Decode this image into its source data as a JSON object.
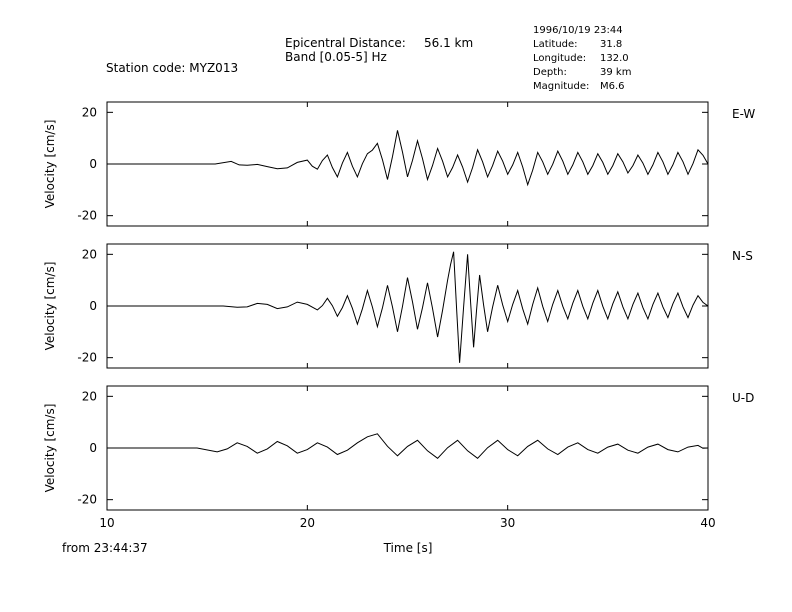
{
  "header": {
    "station_label": "Station code: MYZ013",
    "epicentral_label": "Epicentral Distance:",
    "epicentral_value": "56.1 km",
    "band_label": "Band [0.05-5] Hz",
    "event_datetime": "1996/10/19 23:44",
    "latitude_label": "Latitude:",
    "latitude_value": "31.8",
    "longitude_label": "Longitude:",
    "longitude_value": "132.0",
    "depth_label": "Depth:",
    "depth_value": "39 km",
    "magnitude_label": "Magnitude:",
    "magnitude_value": "M6.6"
  },
  "footer": {
    "start_time": "from 23:44:37",
    "xlabel": "Time [s]"
  },
  "chart_data": {
    "type": "line",
    "xlim": [
      10,
      40
    ],
    "x_ticks": [
      10,
      20,
      30,
      40
    ],
    "x_tick_labels": [
      "10",
      "20",
      "30",
      "40"
    ],
    "ylim": [
      -24,
      24
    ],
    "y_ticks": [
      20,
      0,
      -20
    ],
    "y_tick_labels": [
      "20",
      "0",
      "-20"
    ],
    "ylabel": "Velocity [cm/s]",
    "xlabel": "Time [s]",
    "series": [
      {
        "name": "E-W",
        "x": [
          10,
          15.4,
          16.2,
          17,
          18,
          19,
          20,
          20.5,
          21,
          21.5,
          22,
          22.5,
          23,
          23.5,
          24,
          24.5,
          25,
          25.5,
          26,
          26.5,
          27,
          27.5,
          28,
          28.5,
          29,
          29.5,
          30,
          30.5,
          31,
          31.5,
          32,
          32.5,
          33,
          33.5,
          34,
          34.5,
          35,
          35.5,
          36,
          36.5,
          37,
          37.5,
          38,
          38.5,
          39,
          39.5,
          40
        ],
        "values": [
          0,
          0,
          1,
          -0.5,
          -1,
          -1.5,
          1.5,
          -2,
          3.5,
          -5,
          4.5,
          -5,
          4,
          8,
          -6,
          13,
          -5,
          9,
          -6,
          6,
          -5,
          3.5,
          -7,
          5.5,
          -5,
          5,
          -4,
          4.5,
          -8,
          4.5,
          -4,
          5,
          -4,
          4.5,
          -4,
          4,
          -4,
          4,
          -3.5,
          3.5,
          -4,
          4.5,
          -4,
          4.5,
          -4,
          5.5,
          0
        ]
      },
      {
        "name": "N-S",
        "x": [
          10,
          15.8,
          16.5,
          17.5,
          18.5,
          19.5,
          20.5,
          21,
          21.5,
          22,
          22.5,
          23,
          23.5,
          24,
          24.5,
          25,
          25.5,
          26,
          26.5,
          27,
          27.3,
          27.6,
          28,
          28.3,
          28.6,
          29,
          29.5,
          30,
          30.5,
          31,
          31.5,
          32,
          32.5,
          33,
          33.5,
          34,
          34.5,
          35,
          35.5,
          36,
          36.5,
          37,
          37.5,
          38,
          38.5,
          39,
          39.5,
          40
        ],
        "values": [
          0,
          0,
          -0.5,
          1,
          -1,
          1.5,
          -1.5,
          3,
          -4,
          4,
          -7,
          6,
          -8,
          8,
          -10,
          11,
          -9,
          9,
          -12,
          10,
          21,
          -22,
          20,
          -16,
          12,
          -10,
          8,
          -6,
          6,
          -7,
          7,
          -6,
          6,
          -5,
          6,
          -5,
          6,
          -5,
          5.5,
          -5,
          5,
          -5,
          5,
          -4.5,
          5,
          -4.5,
          4,
          0
        ]
      },
      {
        "name": "U-D",
        "x": [
          10,
          14.5,
          15.5,
          16.5,
          17.5,
          18.5,
          19.5,
          20.5,
          21.5,
          22.5,
          23.5,
          24.5,
          25.5,
          26.5,
          27.5,
          28.5,
          29.5,
          30.5,
          31.5,
          32.5,
          33.5,
          34.5,
          35.5,
          36.5,
          37.5,
          38.5,
          39.5,
          40
        ],
        "values": [
          0,
          0,
          -1.5,
          2,
          -2,
          2.5,
          -2,
          2,
          -2.5,
          2,
          5.5,
          -3,
          3,
          -4,
          3,
          -4,
          3,
          -3,
          3,
          -2.5,
          2,
          -2,
          1.5,
          -2,
          1.5,
          -1.5,
          1,
          0
        ]
      }
    ]
  }
}
